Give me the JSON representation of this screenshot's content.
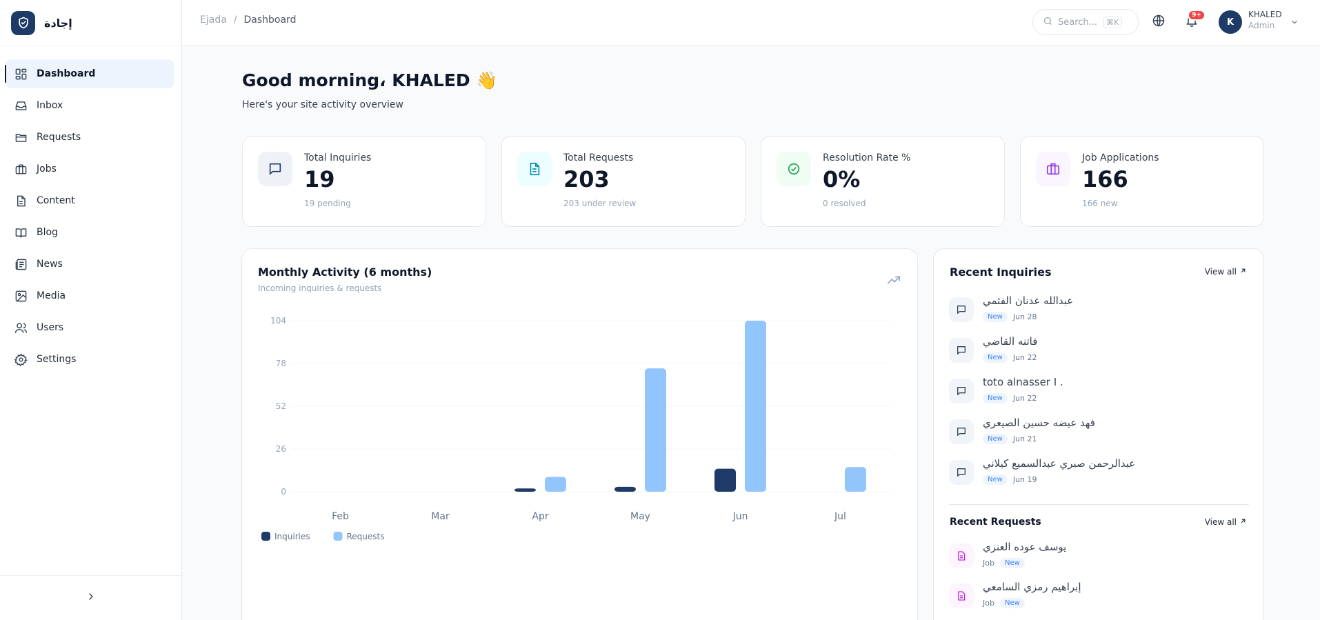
{
  "brand": {
    "name": "إجادة"
  },
  "sidebar": {
    "items": [
      {
        "label": "Dashboard",
        "icon": "dashboard-icon",
        "active": true
      },
      {
        "label": "Inbox",
        "icon": "inbox-icon"
      },
      {
        "label": "Requests",
        "icon": "folder-icon"
      },
      {
        "label": "Jobs",
        "icon": "briefcase-icon"
      },
      {
        "label": "Content",
        "icon": "document-icon"
      },
      {
        "label": "Blog",
        "icon": "book-icon"
      },
      {
        "label": "News",
        "icon": "newspaper-icon"
      },
      {
        "label": "Media",
        "icon": "image-icon"
      },
      {
        "label": "Users",
        "icon": "users-icon"
      },
      {
        "label": "Settings",
        "icon": "gear-icon"
      }
    ]
  },
  "topbar": {
    "breadcrumb": {
      "root": "Ejada",
      "separator": "/",
      "current": "Dashboard"
    },
    "search_placeholder": "Search...",
    "search_shortcut": "⌘K",
    "notification_badge": "9+",
    "user": {
      "initial": "K",
      "name": "KHALED",
      "role": "Admin"
    }
  },
  "greeting": {
    "title": "Good morning، KHALED 👋",
    "subtitle": "Here's your site activity overview"
  },
  "stats": [
    {
      "label": "Total Inquiries",
      "value": "19",
      "sub": "19 pending",
      "icon": "message-icon",
      "color": "#1e3a66",
      "bg": "#eef2f7"
    },
    {
      "label": "Total Requests",
      "value": "203",
      "sub": "203 under review",
      "icon": "file-text-icon",
      "color": "#0891b2",
      "bg": "#ecfeff"
    },
    {
      "label": "Resolution Rate %",
      "value": "0%",
      "sub": "0 resolved",
      "icon": "check-circle-icon",
      "color": "#16a34a",
      "bg": "#f0fdf4"
    },
    {
      "label": "Job Applications",
      "value": "166",
      "sub": "166 new",
      "icon": "briefcase-icon",
      "color": "#9333ea",
      "bg": "#faf5ff"
    }
  ],
  "chart": {
    "title": "Monthly Activity (6 months)",
    "subtitle": "Incoming inquiries & requests"
  },
  "chart_data": {
    "type": "bar",
    "categories": [
      "Feb",
      "Mar",
      "Apr",
      "May",
      "Jun",
      "Jul"
    ],
    "series": [
      {
        "name": "Inquiries",
        "values": [
          0,
          0,
          2,
          3,
          14,
          0
        ],
        "color": "#1e3a66"
      },
      {
        "name": "Requests",
        "values": [
          0,
          0,
          9,
          75,
          104,
          15
        ],
        "color": "#93c5fd"
      }
    ],
    "yticks": [
      0,
      26,
      52,
      78,
      104
    ],
    "ylim": [
      0,
      104
    ],
    "grid": true,
    "legend": "bottom-left"
  },
  "recent_inquiries": {
    "title": "Recent Inquiries",
    "view_all": "View all",
    "items": [
      {
        "name": "عبدالله عدنان الفثمي",
        "tag": "New",
        "date": "Jun 28"
      },
      {
        "name": "فاتنه القاضي",
        "tag": "New",
        "date": "Jun 22"
      },
      {
        "name": "toto alnasser I .",
        "tag": "New",
        "date": "Jun 22"
      },
      {
        "name": "فهد عيضه حسين الصيعري",
        "tag": "New",
        "date": "Jun 21"
      },
      {
        "name": "عبدالرحمن صبري عبدالسميع كيلاني",
        "tag": "New",
        "date": "Jun 19"
      }
    ]
  },
  "recent_requests": {
    "title": "Recent Requests",
    "view_all": "View all",
    "items": [
      {
        "name": "يوسف عوده العنزي",
        "type": "Job",
        "tag": "New"
      },
      {
        "name": "إبراهيم رمزي السامعي",
        "type": "Job",
        "tag": "New"
      }
    ]
  }
}
